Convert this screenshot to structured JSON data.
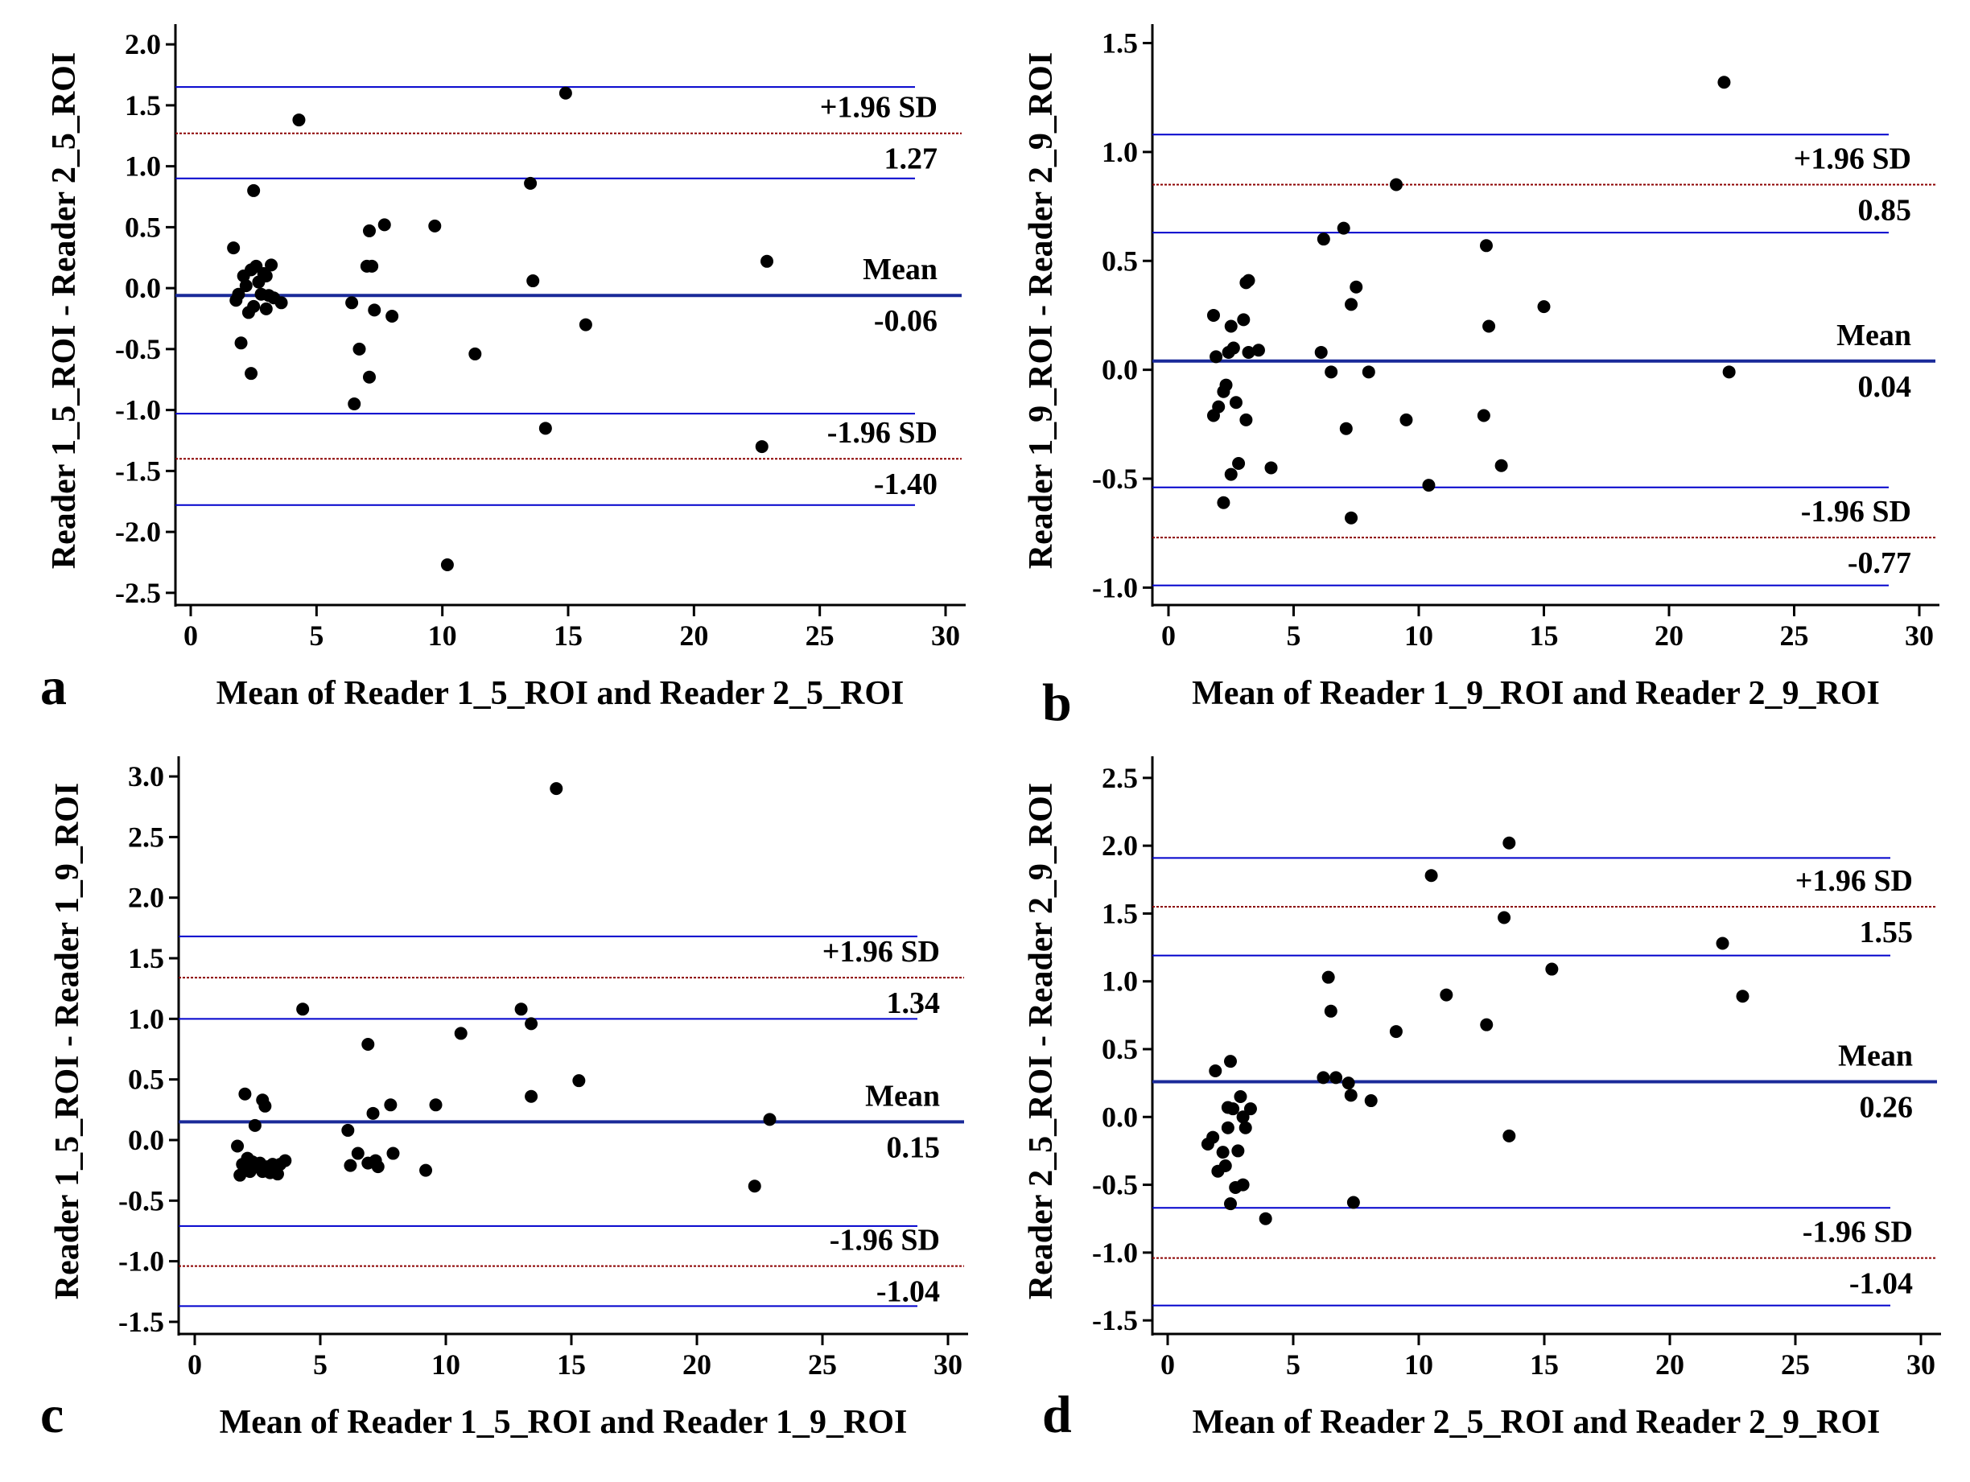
{
  "colors": {
    "background": "#ffffff",
    "axis": "#000000",
    "loa_line": "#0000cc",
    "ref_line": "#8b0000",
    "point": "#000000"
  },
  "chart_data": [
    {
      "type": "scatter",
      "panel_letter": "a",
      "xlabel": "Mean of Reader 1_5_ROI and Reader 2_5_ROI",
      "ylabel": "Reader 1_5_ROI - Reader 2_5_ROI",
      "xlim": [
        0,
        30
      ],
      "ylim": [
        -2.6,
        2.1
      ],
      "xticks": [
        0,
        5,
        10,
        15,
        20,
        25,
        30
      ],
      "xtick_labels": [
        "0",
        "5",
        "10",
        "15",
        "20",
        "25",
        "30"
      ],
      "yticks": [
        2.0,
        1.5,
        1.0,
        0.5,
        0.0,
        -0.5,
        -1.0,
        -1.5,
        -2.0,
        -2.5
      ],
      "ytick_labels": [
        "2.0",
        "1.5",
        "1.0",
        "0.5",
        "0.0",
        "-0.5",
        "-1.0",
        "-1.5",
        "-2.0",
        "-2.5"
      ],
      "mean": -0.06,
      "upper_loa": 1.27,
      "lower_loa": -1.4,
      "ci_lines": [
        1.65,
        0.9,
        -1.03,
        -1.78
      ],
      "labels": {
        "upper": "+1.96 SD",
        "upper_value": "1.27",
        "mean": "Mean",
        "mean_value": "-0.06",
        "lower": "-1.96 SD",
        "lower_value": "-1.40"
      },
      "points": [
        [
          1.7,
          0.33
        ],
        [
          1.8,
          -0.1
        ],
        [
          1.9,
          -0.05
        ],
        [
          2.0,
          -0.45
        ],
        [
          2.1,
          0.1
        ],
        [
          2.2,
          0.02
        ],
        [
          2.3,
          -0.2
        ],
        [
          2.4,
          -0.7
        ],
        [
          2.4,
          0.15
        ],
        [
          2.5,
          0.8
        ],
        [
          2.5,
          -0.15
        ],
        [
          2.6,
          0.18
        ],
        [
          2.7,
          0.05
        ],
        [
          2.8,
          -0.05
        ],
        [
          2.9,
          0.12
        ],
        [
          3.0,
          -0.17
        ],
        [
          3.0,
          0.1
        ],
        [
          3.1,
          -0.06
        ],
        [
          3.2,
          0.19
        ],
        [
          3.3,
          -0.08
        ],
        [
          3.6,
          -0.12
        ],
        [
          4.3,
          1.38
        ],
        [
          6.4,
          -0.12
        ],
        [
          6.5,
          -0.95
        ],
        [
          6.7,
          -0.5
        ],
        [
          7.0,
          0.18
        ],
        [
          7.1,
          0.47
        ],
        [
          7.1,
          -0.73
        ],
        [
          7.2,
          0.18
        ],
        [
          7.3,
          -0.18
        ],
        [
          7.7,
          0.52
        ],
        [
          8.0,
          -0.23
        ],
        [
          9.7,
          0.51
        ],
        [
          11.3,
          -0.54
        ],
        [
          13.5,
          0.86
        ],
        [
          13.6,
          0.06
        ],
        [
          14.1,
          -1.15
        ],
        [
          14.9,
          1.6
        ],
        [
          15.7,
          -0.3
        ],
        [
          10.2,
          -2.27
        ],
        [
          22.7,
          -1.3
        ],
        [
          22.9,
          0.22
        ]
      ]
    },
    {
      "type": "scatter",
      "panel_letter": "b",
      "xlabel": "Mean of Reader 1_9_ROI and Reader 2_9_ROI",
      "ylabel": "Reader 1_9_ROI - Reader 2_9_ROI",
      "xlim": [
        0,
        30
      ],
      "ylim": [
        -1.08,
        1.55
      ],
      "xticks": [
        0,
        5,
        10,
        15,
        20,
        25,
        30
      ],
      "xtick_labels": [
        "0",
        "5",
        "10",
        "15",
        "20",
        "25",
        "30"
      ],
      "yticks": [
        1.5,
        1.0,
        0.5,
        0.0,
        -0.5,
        -1.0
      ],
      "ytick_labels": [
        "1.5",
        "1.0",
        "0.5",
        "0.0",
        "-0.5",
        "-1.0"
      ],
      "mean": 0.04,
      "upper_loa": 0.85,
      "lower_loa": -0.77,
      "ci_lines": [
        1.08,
        0.63,
        -0.54,
        -0.99
      ],
      "labels": {
        "upper": "+1.96 SD",
        "upper_value": "0.85",
        "mean": "Mean",
        "mean_value": "0.04",
        "lower": "-1.96 SD",
        "lower_value": "-0.77"
      },
      "points": [
        [
          1.8,
          0.25
        ],
        [
          1.9,
          0.06
        ],
        [
          1.8,
          -0.21
        ],
        [
          2.0,
          -0.17
        ],
        [
          2.2,
          -0.61
        ],
        [
          2.2,
          -0.1
        ],
        [
          2.3,
          -0.07
        ],
        [
          2.4,
          0.08
        ],
        [
          2.5,
          0.2
        ],
        [
          2.5,
          -0.48
        ],
        [
          2.6,
          0.1
        ],
        [
          2.7,
          -0.15
        ],
        [
          2.8,
          -0.43
        ],
        [
          3.0,
          0.23
        ],
        [
          3.1,
          0.4
        ],
        [
          3.1,
          -0.23
        ],
        [
          3.2,
          0.08
        ],
        [
          3.2,
          0.41
        ],
        [
          3.6,
          0.09
        ],
        [
          4.1,
          -0.45
        ],
        [
          6.1,
          0.08
        ],
        [
          6.2,
          0.6
        ],
        [
          6.5,
          -0.01
        ],
        [
          7.0,
          0.65
        ],
        [
          7.1,
          -0.27
        ],
        [
          7.3,
          0.3
        ],
        [
          7.3,
          -0.68
        ],
        [
          7.5,
          0.38
        ],
        [
          8.0,
          -0.01
        ],
        [
          9.1,
          0.85
        ],
        [
          9.5,
          -0.23
        ],
        [
          10.4,
          -0.53
        ],
        [
          12.6,
          -0.21
        ],
        [
          12.7,
          0.57
        ],
        [
          12.8,
          0.2
        ],
        [
          13.3,
          -0.44
        ],
        [
          15.0,
          0.29
        ],
        [
          22.2,
          1.32
        ],
        [
          22.4,
          -0.01
        ]
      ]
    },
    {
      "type": "scatter",
      "panel_letter": "c",
      "xlabel": "Mean of Reader 1_5_ROI and Reader 1_9_ROI",
      "ylabel": "Reader 1_5_ROI - Reader 1_9_ROI",
      "xlim": [
        0,
        30
      ],
      "ylim": [
        -1.6,
        3.1
      ],
      "xticks": [
        0,
        5,
        10,
        15,
        20,
        25,
        30
      ],
      "xtick_labels": [
        "0",
        "5",
        "10",
        "15",
        "20",
        "25",
        "30"
      ],
      "yticks": [
        3.0,
        2.5,
        2.0,
        1.5,
        1.0,
        0.5,
        0.0,
        -0.5,
        -1.0,
        -1.5
      ],
      "ytick_labels": [
        "3.0",
        "2.5",
        "2.0",
        "1.5",
        "1.0",
        "0.5",
        "0.0",
        "-0.5",
        "-1.0",
        "-1.5"
      ],
      "mean": 0.15,
      "upper_loa": 1.34,
      "lower_loa": -1.04,
      "ci_lines": [
        1.68,
        1.0,
        -0.71,
        -1.37
      ],
      "labels": {
        "upper": "+1.96 SD",
        "upper_value": "1.34",
        "mean": "Mean",
        "mean_value": "0.15",
        "lower": "-1.96 SD",
        "lower_value": "-1.04"
      },
      "points": [
        [
          1.7,
          -0.05
        ],
        [
          1.8,
          -0.29
        ],
        [
          1.9,
          -0.2
        ],
        [
          2.0,
          0.38
        ],
        [
          2.1,
          -0.15
        ],
        [
          2.2,
          -0.26
        ],
        [
          2.3,
          -0.18
        ],
        [
          2.4,
          0.12
        ],
        [
          2.5,
          -0.22
        ],
        [
          2.6,
          -0.19
        ],
        [
          2.7,
          0.33
        ],
        [
          2.7,
          -0.26
        ],
        [
          2.8,
          0.28
        ],
        [
          2.9,
          -0.22
        ],
        [
          3.0,
          -0.27
        ],
        [
          3.1,
          -0.2
        ],
        [
          3.2,
          -0.24
        ],
        [
          3.3,
          -0.28
        ],
        [
          3.4,
          -0.2
        ],
        [
          3.6,
          -0.17
        ],
        [
          4.3,
          1.08
        ],
        [
          6.1,
          0.08
        ],
        [
          6.2,
          -0.21
        ],
        [
          6.5,
          -0.11
        ],
        [
          6.9,
          0.79
        ],
        [
          6.9,
          -0.19
        ],
        [
          7.1,
          0.22
        ],
        [
          7.2,
          -0.17
        ],
        [
          7.3,
          -0.22
        ],
        [
          7.8,
          0.29
        ],
        [
          7.9,
          -0.11
        ],
        [
          9.2,
          -0.25
        ],
        [
          9.6,
          0.29
        ],
        [
          10.6,
          0.88
        ],
        [
          13.0,
          1.08
        ],
        [
          13.4,
          0.96
        ],
        [
          13.4,
          0.36
        ],
        [
          14.4,
          2.9
        ],
        [
          15.3,
          0.49
        ],
        [
          22.3,
          -0.38
        ],
        [
          22.9,
          0.17
        ]
      ]
    },
    {
      "type": "scatter",
      "panel_letter": "d",
      "xlabel": "Mean of Reader 2_5_ROI and Reader 2_9_ROI",
      "ylabel": "Reader 2_5_ROI - Reader 2_9_ROI",
      "xlim": [
        0,
        30
      ],
      "ylim": [
        -1.6,
        2.6
      ],
      "xticks": [
        0,
        5,
        10,
        15,
        20,
        25,
        30
      ],
      "xtick_labels": [
        "0",
        "5",
        "10",
        "15",
        "20",
        "25",
        "30"
      ],
      "yticks": [
        2.5,
        2.0,
        1.5,
        1.0,
        0.5,
        0.0,
        -0.5,
        -1.0,
        -1.5
      ],
      "ytick_labels": [
        "2.5",
        "2.0",
        "1.5",
        "1.0",
        "0.5",
        "0.0",
        "-0.5",
        "-1.0",
        "-1.5"
      ],
      "mean": 0.26,
      "upper_loa": 1.55,
      "lower_loa": -1.04,
      "ci_lines": [
        1.91,
        1.19,
        -0.67,
        -1.39
      ],
      "labels": {
        "upper": "+1.96 SD",
        "upper_value": "1.55",
        "mean": "Mean",
        "mean_value": "0.26",
        "lower": "-1.96 SD",
        "lower_value": "-1.04"
      },
      "points": [
        [
          1.6,
          -0.2
        ],
        [
          1.8,
          -0.15
        ],
        [
          1.9,
          0.34
        ],
        [
          2.0,
          -0.4
        ],
        [
          2.2,
          -0.26
        ],
        [
          2.3,
          -0.36
        ],
        [
          2.4,
          0.07
        ],
        [
          2.4,
          -0.08
        ],
        [
          2.5,
          0.41
        ],
        [
          2.5,
          -0.64
        ],
        [
          2.6,
          0.06
        ],
        [
          2.7,
          -0.52
        ],
        [
          2.8,
          -0.25
        ],
        [
          2.9,
          0.15
        ],
        [
          3.0,
          0.0
        ],
        [
          3.0,
          -0.5
        ],
        [
          3.1,
          -0.08
        ],
        [
          3.3,
          0.06
        ],
        [
          3.9,
          -0.75
        ],
        [
          6.2,
          0.29
        ],
        [
          6.4,
          1.03
        ],
        [
          6.5,
          0.78
        ],
        [
          6.7,
          0.29
        ],
        [
          7.2,
          0.25
        ],
        [
          7.3,
          0.16
        ],
        [
          7.4,
          -0.63
        ],
        [
          8.1,
          0.12
        ],
        [
          9.1,
          0.63
        ],
        [
          10.5,
          1.78
        ],
        [
          11.1,
          0.9
        ],
        [
          12.7,
          0.68
        ],
        [
          13.4,
          1.47
        ],
        [
          13.6,
          2.02
        ],
        [
          13.6,
          -0.14
        ],
        [
          15.3,
          1.09
        ],
        [
          22.1,
          1.28
        ],
        [
          22.9,
          0.89
        ]
      ]
    }
  ]
}
